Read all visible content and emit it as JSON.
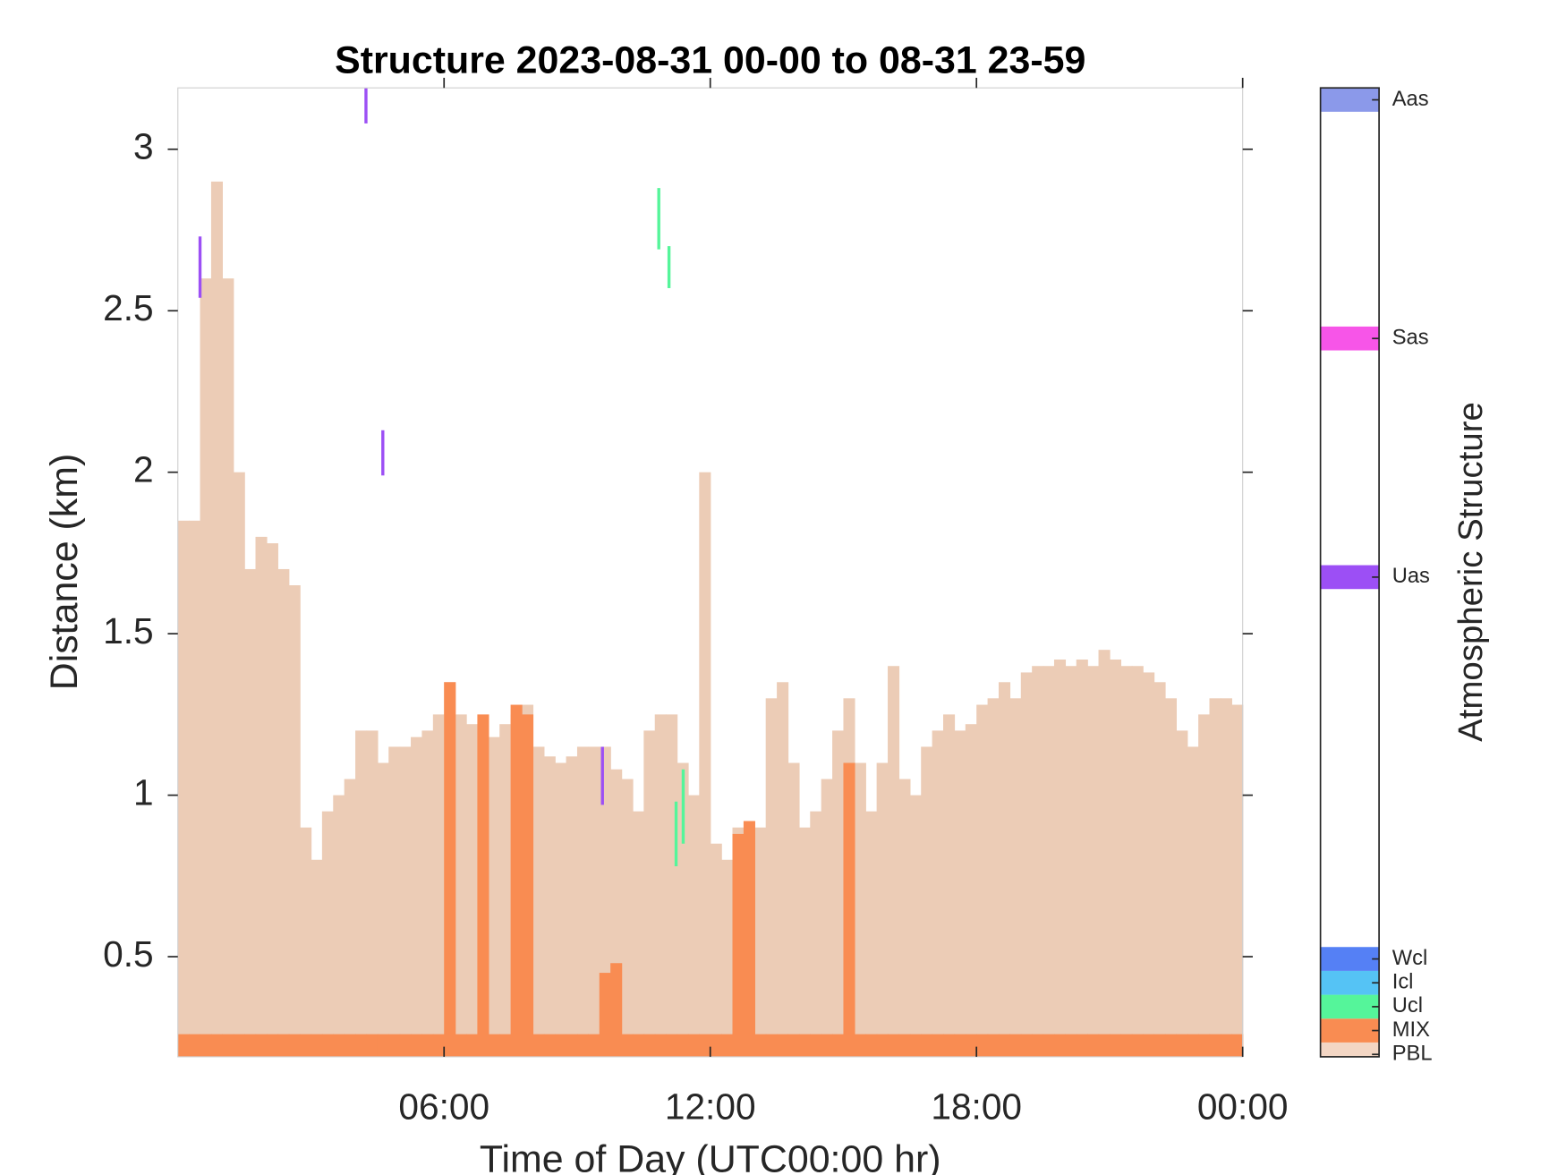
{
  "chart_data": {
    "type": "bar",
    "title": "Structure 2023-08-31 00-00 to 08-31 23-59",
    "x_label": "Time of Day (UTC00:00 hr)",
    "y_label": "Distance (km)",
    "xlim": [
      0,
      24
    ],
    "xticks": [
      {
        "value": 6,
        "label": "06:00"
      },
      {
        "value": 12,
        "label": "12:00"
      },
      {
        "value": 18,
        "label": "18:00"
      },
      {
        "value": 24,
        "label": "00:00"
      }
    ],
    "ylim": [
      0.19,
      3.19
    ],
    "yticks": [
      0.5,
      1,
      1.5,
      2,
      2.5,
      3
    ],
    "bar_width": 0.25,
    "x": [
      0,
      0.25,
      0.5,
      0.75,
      1,
      1.25,
      1.5,
      1.75,
      2,
      2.25,
      2.5,
      2.75,
      3,
      3.25,
      3.5,
      3.75,
      4,
      4.25,
      4.5,
      4.75,
      5,
      5.25,
      5.5,
      5.75,
      6,
      6.25,
      6.5,
      6.75,
      7,
      7.25,
      7.5,
      7.75,
      8,
      8.25,
      8.5,
      8.75,
      9,
      9.25,
      9.5,
      9.75,
      10,
      10.25,
      10.5,
      10.75,
      11,
      11.25,
      11.5,
      11.75,
      12,
      12.25,
      12.5,
      12.75,
      13,
      13.25,
      13.5,
      13.75,
      14,
      14.25,
      14.5,
      14.75,
      15,
      15.25,
      15.5,
      15.75,
      16,
      16.25,
      16.5,
      16.75,
      17,
      17.25,
      17.5,
      17.75,
      18,
      18.25,
      18.5,
      18.75,
      19,
      19.25,
      19.5,
      19.75,
      20,
      20.25,
      20.5,
      20.75,
      21,
      21.25,
      21.5,
      21.75,
      22,
      22.25,
      22.5,
      22.75,
      23,
      23.25,
      23.5,
      23.75
    ],
    "series": [
      {
        "name": "PBL",
        "color": "#ecccb6",
        "values": [
          1.85,
          1.85,
          2.6,
          2.9,
          2.6,
          2.0,
          1.7,
          1.8,
          1.78,
          1.7,
          1.65,
          0.9,
          0.8,
          0.95,
          1.0,
          1.05,
          1.2,
          1.2,
          1.1,
          1.15,
          1.15,
          1.18,
          1.2,
          1.25,
          1.35,
          1.25,
          1.22,
          1.2,
          1.18,
          1.22,
          1.25,
          1.28,
          1.15,
          1.12,
          1.1,
          1.12,
          1.15,
          1.15,
          1.15,
          1.08,
          1.05,
          0.95,
          1.2,
          1.25,
          1.25,
          1.1,
          1.0,
          2.0,
          0.85,
          0.8,
          0.9,
          0.88,
          0.9,
          1.3,
          1.35,
          1.1,
          0.9,
          0.95,
          1.05,
          1.2,
          1.3,
          1.1,
          0.95,
          1.1,
          1.4,
          1.05,
          1.0,
          1.15,
          1.2,
          1.25,
          1.2,
          1.22,
          1.28,
          1.3,
          1.35,
          1.3,
          1.38,
          1.4,
          1.4,
          1.42,
          1.4,
          1.42,
          1.4,
          1.45,
          1.42,
          1.4,
          1.4,
          1.38,
          1.35,
          1.3,
          1.2,
          1.15,
          1.25,
          1.3,
          1.3,
          1.28
        ]
      },
      {
        "name": "MIX",
        "color": "#f98c52",
        "values": [
          0.26,
          0.26,
          0.26,
          0.26,
          0.26,
          0.26,
          0.26,
          0.26,
          0.26,
          0.26,
          0.26,
          0.26,
          0.26,
          0.26,
          0.26,
          0.26,
          0.26,
          0.26,
          0.26,
          0.26,
          0.26,
          0.26,
          0.26,
          0.26,
          1.35,
          0.26,
          0.26,
          1.25,
          0.26,
          0.26,
          1.28,
          1.25,
          0.26,
          0.26,
          0.26,
          0.26,
          0.26,
          0.26,
          0.45,
          0.48,
          0.26,
          0.26,
          0.26,
          0.26,
          0.26,
          0.26,
          0.26,
          0.26,
          0.26,
          0.26,
          0.88,
          0.92,
          0.26,
          0.26,
          0.26,
          0.26,
          0.26,
          0.26,
          0.26,
          0.26,
          1.1,
          0.26,
          0.26,
          0.26,
          0.26,
          0.26,
          0.26,
          0.26,
          0.26,
          0.26,
          0.26,
          0.26,
          0.26,
          0.26,
          0.26,
          0.26,
          0.26,
          0.26,
          0.26,
          0.26,
          0.26,
          0.26,
          0.26,
          0.26,
          0.26,
          0.26,
          0.26,
          0.26,
          0.26,
          0.26,
          0.26,
          0.26,
          0.26,
          0.26,
          0.26,
          0.26
        ]
      }
    ],
    "segments": [
      {
        "name": "Uas",
        "color": "#9c4ff5",
        "x": [
          0.5,
          4.24,
          4.62,
          9.57
        ],
        "y_bottom": [
          2.54,
          3.08,
          1.99,
          0.97
        ],
        "y_top": [
          2.73,
          3.19,
          2.13,
          1.15
        ]
      },
      {
        "name": "Ucl",
        "color": "#55f59a",
        "x": [
          10.84,
          11.07,
          11.23,
          11.39
        ],
        "y_bottom": [
          2.69,
          2.57,
          0.78,
          0.85
        ],
        "y_top": [
          2.88,
          2.7,
          0.98,
          1.08
        ]
      }
    ],
    "colorbar": {
      "label": "Atmospheric Structure",
      "clim": [
        -0.1,
        40.5
      ],
      "ticks": [
        {
          "value": 0,
          "label": "PBL",
          "color": "#f3d6c4"
        },
        {
          "value": 1,
          "label": "MIX",
          "color": "#f98c52"
        },
        {
          "value": 2,
          "label": "Ucl",
          "color": "#55f59a"
        },
        {
          "value": 3,
          "label": "Icl",
          "color": "#55c3f5"
        },
        {
          "value": 4,
          "label": "Wcl",
          "color": "#5580f5"
        },
        {
          "value": 20,
          "label": "Uas",
          "color": "#9c4ff5"
        },
        {
          "value": 30,
          "label": "Sas",
          "color": "#f755e8"
        },
        {
          "value": 40,
          "label": "Aas",
          "color": "#8b99ea"
        }
      ]
    }
  }
}
